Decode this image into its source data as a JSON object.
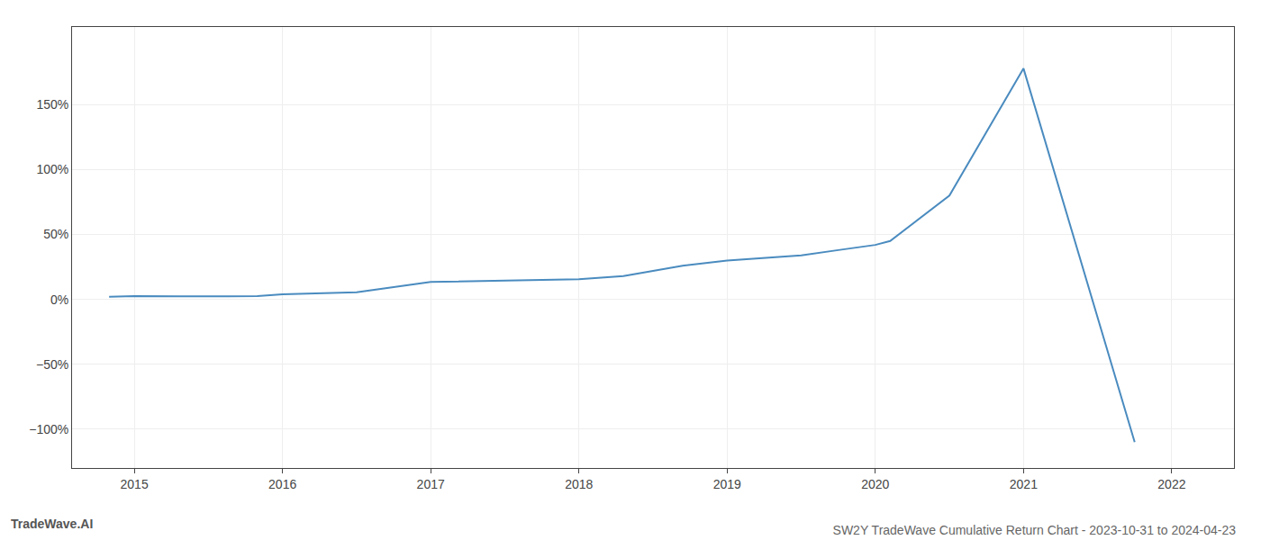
{
  "chart_data": {
    "type": "line",
    "title": "SW2Y TradeWave Cumulative Return Chart - 2023-10-31 to 2024-04-23",
    "annotations": [
      {
        "text": "TradeWave.AI"
      }
    ],
    "x": [
      2014.83,
      2015.0,
      2015.3,
      2015.83,
      2016.0,
      2016.5,
      2017.0,
      2017.5,
      2018.0,
      2018.3,
      2018.7,
      2019.0,
      2019.5,
      2019.75,
      2020.0,
      2020.1,
      2020.5,
      2021.0,
      2021.75
    ],
    "values": [
      2.0,
      2.5,
      2.3,
      2.5,
      4.0,
      5.5,
      13.5,
      14.5,
      15.5,
      18.0,
      26.0,
      30.0,
      34.0,
      38.0,
      42.0,
      45.0,
      80.0,
      178.0,
      -110.0
    ],
    "color": "#4a8bbf",
    "xlim": [
      2014.58,
      2022.42
    ],
    "xticks": [
      2015,
      2016,
      2017,
      2018,
      2019,
      2020,
      2021,
      2022
    ],
    "ylim": [
      -130,
      210
    ],
    "yticks": [
      {
        "value": -100,
        "label": "−100%"
      },
      {
        "value": -50,
        "label": "−50%"
      },
      {
        "value": 0,
        "label": "0%"
      },
      {
        "value": 50,
        "label": "50%"
      },
      {
        "value": 100,
        "label": "100%"
      },
      {
        "value": 150,
        "label": "150%"
      }
    ],
    "grid": true
  }
}
